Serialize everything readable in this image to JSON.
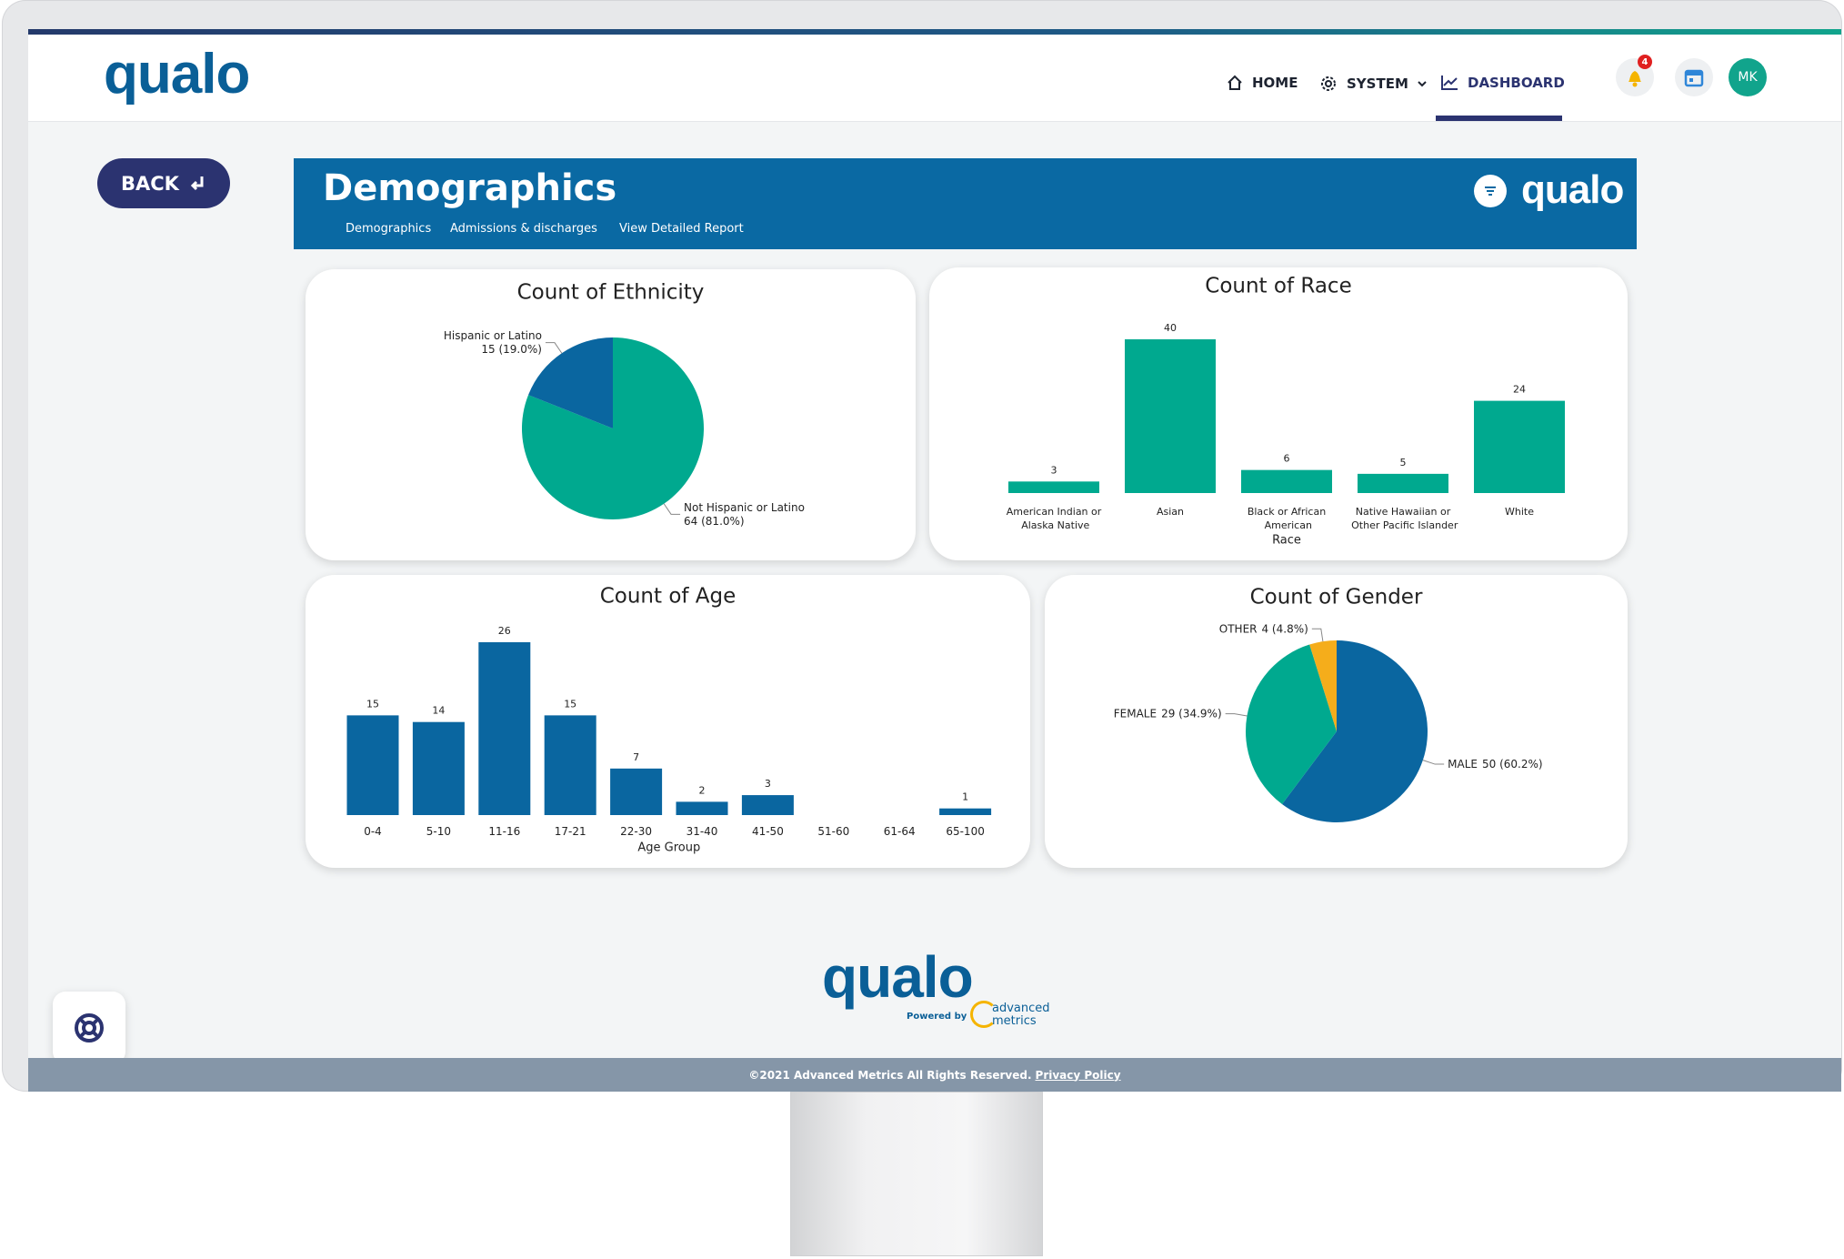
{
  "nav": {
    "logo": "qualo",
    "items": [
      "HOME",
      "SYSTEM",
      "DASHBOARD"
    ],
    "notifications": "4",
    "avatar": "MK"
  },
  "back": "BACK",
  "banner": {
    "title": "Demographics",
    "tabs": [
      "Demographics",
      "Admissions & discharges",
      "View Detailed Report"
    ],
    "logo": "qualo"
  },
  "chart_data": [
    {
      "type": "pie",
      "title": "Count of Ethnicity",
      "categories": [
        "Not Hispanic or Latino",
        "Hispanic or Latino"
      ],
      "values": [
        64,
        15
      ],
      "value_labels": [
        "64 (81.0%)",
        "15 (19.0%)"
      ],
      "colors": [
        "#00a98f",
        "#0a66a0"
      ]
    },
    {
      "type": "bar",
      "title": "Count of Race",
      "x_label": "Race",
      "categories": [
        "American Indian or Alaska Native",
        "Asian",
        "Black or African American",
        "Native Hawaiian or Other Pacific Islander",
        "White"
      ],
      "values": [
        3,
        40,
        6,
        5,
        24
      ],
      "color": "#00a98f"
    },
    {
      "type": "bar",
      "title": "Count of Age",
      "x_label": "Age Group",
      "categories": [
        "0-4",
        "5-10",
        "11-16",
        "17-21",
        "22-30",
        "31-40",
        "41-50",
        "51-60",
        "61-64",
        "65-100"
      ],
      "values": [
        15,
        14,
        26,
        15,
        7,
        2,
        3,
        null,
        null,
        1
      ],
      "color": "#0a66a0"
    },
    {
      "type": "pie",
      "title": "Count of Gender",
      "categories": [
        "MALE",
        "FEMALE",
        "OTHER"
      ],
      "values": [
        50,
        29,
        4
      ],
      "value_labels": [
        "50 (60.2%)",
        "29 (34.9%)",
        "4 (4.8%)"
      ],
      "colors": [
        "#0a66a0",
        "#00a98f",
        "#f5ad1b"
      ]
    }
  ],
  "footer": {
    "logo": "qualo",
    "powered_by": "Powered by",
    "brand": [
      "advanced",
      "metrics"
    ],
    "copyright": "©2021 Advanced Metrics All Rights Reserved.",
    "link": "Privacy Policy"
  }
}
